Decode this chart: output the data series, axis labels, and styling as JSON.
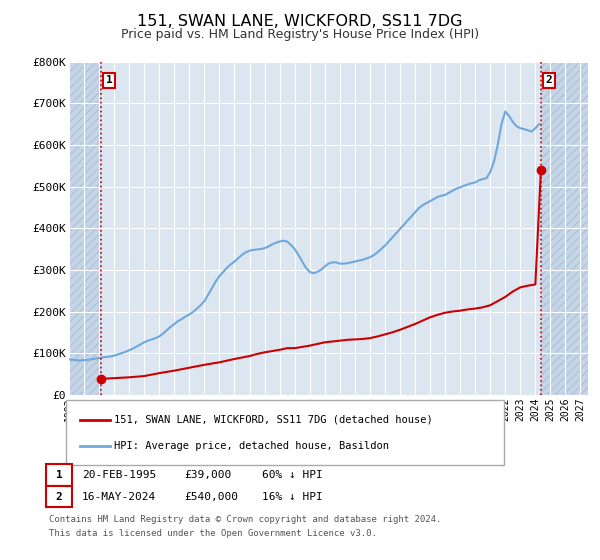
{
  "title": "151, SWAN LANE, WICKFORD, SS11 7DG",
  "subtitle": "Price paid vs. HM Land Registry's House Price Index (HPI)",
  "title_fontsize": 11.5,
  "subtitle_fontsize": 9,
  "background_color": "#ffffff",
  "plot_bg_color": "#dce6f1",
  "hatch_color": "#c5d5e8",
  "grid_color": "#ffffff",
  "ylim": [
    0,
    800000
  ],
  "yticks": [
    0,
    100000,
    200000,
    300000,
    400000,
    500000,
    600000,
    700000,
    800000
  ],
  "ytick_labels": [
    "£0",
    "£100K",
    "£200K",
    "£300K",
    "£400K",
    "£500K",
    "£600K",
    "£700K",
    "£800K"
  ],
  "xlim_start": 1993.0,
  "xlim_end": 2027.5,
  "xticks": [
    1993,
    1994,
    1995,
    1996,
    1997,
    1998,
    1999,
    2000,
    2001,
    2002,
    2003,
    2004,
    2005,
    2006,
    2007,
    2008,
    2009,
    2010,
    2011,
    2012,
    2013,
    2014,
    2015,
    2016,
    2017,
    2018,
    2019,
    2020,
    2021,
    2022,
    2023,
    2024,
    2025,
    2026,
    2027
  ],
  "hpi_color": "#6fa8dc",
  "price_color": "#cc0000",
  "vline_color": "#cc0000",
  "sale1_x": 1995.13,
  "sale1_y": 39000,
  "sale2_x": 2024.37,
  "sale2_y": 540000,
  "legend_label1": "151, SWAN LANE, WICKFORD, SS11 7DG (detached house)",
  "legend_label2": "HPI: Average price, detached house, Basildon",
  "annot1_label": "1",
  "annot2_label": "2",
  "table_row1": [
    "1",
    "20-FEB-1995",
    "£39,000",
    "60% ↓ HPI"
  ],
  "table_row2": [
    "2",
    "16-MAY-2024",
    "£540,000",
    "16% ↓ HPI"
  ],
  "footer_line1": "Contains HM Land Registry data © Crown copyright and database right 2024.",
  "footer_line2": "This data is licensed under the Open Government Licence v3.0.",
  "hpi_data_x": [
    1993.0,
    1993.25,
    1993.5,
    1993.75,
    1994.0,
    1994.25,
    1994.5,
    1994.75,
    1995.0,
    1995.25,
    1995.5,
    1995.75,
    1996.0,
    1996.25,
    1996.5,
    1996.75,
    1997.0,
    1997.25,
    1997.5,
    1997.75,
    1998.0,
    1998.25,
    1998.5,
    1998.75,
    1999.0,
    1999.25,
    1999.5,
    1999.75,
    2000.0,
    2000.25,
    2000.5,
    2000.75,
    2001.0,
    2001.25,
    2001.5,
    2001.75,
    2002.0,
    2002.25,
    2002.5,
    2002.75,
    2003.0,
    2003.25,
    2003.5,
    2003.75,
    2004.0,
    2004.25,
    2004.5,
    2004.75,
    2005.0,
    2005.25,
    2005.5,
    2005.75,
    2006.0,
    2006.25,
    2006.5,
    2006.75,
    2007.0,
    2007.25,
    2007.5,
    2007.75,
    2008.0,
    2008.25,
    2008.5,
    2008.75,
    2009.0,
    2009.25,
    2009.5,
    2009.75,
    2010.0,
    2010.25,
    2010.5,
    2010.75,
    2011.0,
    2011.25,
    2011.5,
    2011.75,
    2012.0,
    2012.25,
    2012.5,
    2012.75,
    2013.0,
    2013.25,
    2013.5,
    2013.75,
    2014.0,
    2014.25,
    2014.5,
    2014.75,
    2015.0,
    2015.25,
    2015.5,
    2015.75,
    2016.0,
    2016.25,
    2016.5,
    2016.75,
    2017.0,
    2017.25,
    2017.5,
    2017.75,
    2018.0,
    2018.25,
    2018.5,
    2018.75,
    2019.0,
    2019.25,
    2019.5,
    2019.75,
    2020.0,
    2020.25,
    2020.5,
    2020.75,
    2021.0,
    2021.25,
    2021.5,
    2021.75,
    2022.0,
    2022.25,
    2022.5,
    2022.75,
    2023.0,
    2023.25,
    2023.5,
    2023.75,
    2024.0,
    2024.25
  ],
  "hpi_data_y": [
    85000,
    84000,
    83000,
    82500,
    83000,
    84000,
    85000,
    87000,
    88000,
    90000,
    91000,
    92000,
    94000,
    97000,
    100000,
    103000,
    107000,
    111000,
    116000,
    121000,
    126000,
    130000,
    133000,
    136000,
    140000,
    147000,
    155000,
    163000,
    170000,
    177000,
    182000,
    188000,
    193000,
    199000,
    207000,
    215000,
    225000,
    240000,
    256000,
    272000,
    285000,
    295000,
    305000,
    313000,
    320000,
    328000,
    336000,
    342000,
    346000,
    348000,
    349000,
    350000,
    352000,
    356000,
    361000,
    365000,
    368000,
    370000,
    368000,
    360000,
    350000,
    336000,
    320000,
    305000,
    295000,
    292000,
    295000,
    300000,
    308000,
    315000,
    318000,
    318000,
    315000,
    315000,
    316000,
    318000,
    320000,
    322000,
    324000,
    327000,
    330000,
    335000,
    342000,
    350000,
    358000,
    368000,
    378000,
    388000,
    398000,
    408000,
    418000,
    428000,
    438000,
    448000,
    455000,
    460000,
    465000,
    470000,
    475000,
    478000,
    480000,
    485000,
    490000,
    495000,
    498000,
    502000,
    505000,
    508000,
    510000,
    515000,
    518000,
    520000,
    535000,
    560000,
    600000,
    650000,
    680000,
    670000,
    655000,
    645000,
    640000,
    638000,
    635000,
    632000,
    640000,
    650000
  ],
  "price_line_x": [
    1995.13,
    1995.5,
    1996.0,
    1997.0,
    1998.0,
    1999.0,
    2000.0,
    2001.0,
    2002.0,
    2003.0,
    2004.0,
    2005.0,
    2005.5,
    2006.0,
    2007.0,
    2007.5,
    2008.0,
    2008.5,
    2009.0,
    2009.5,
    2010.0,
    2010.5,
    2011.0,
    2011.5,
    2012.0,
    2012.5,
    2013.0,
    2013.5,
    2014.0,
    2014.5,
    2015.0,
    2015.5,
    2016.0,
    2016.5,
    2017.0,
    2017.5,
    2018.0,
    2018.5,
    2019.0,
    2019.5,
    2020.0,
    2020.5,
    2021.0,
    2021.5,
    2022.0,
    2022.5,
    2023.0,
    2023.5,
    2024.0,
    2024.37
  ],
  "price_line_y": [
    39000,
    39000,
    40000,
    42000,
    45000,
    52000,
    58000,
    65000,
    72000,
    78000,
    86000,
    93000,
    98000,
    102000,
    108000,
    112000,
    112000,
    115000,
    118000,
    122000,
    126000,
    128000,
    130000,
    132000,
    133000,
    134000,
    136000,
    140000,
    145000,
    150000,
    156000,
    163000,
    170000,
    178000,
    186000,
    192000,
    197000,
    200000,
    202000,
    205000,
    207000,
    210000,
    215000,
    225000,
    235000,
    248000,
    258000,
    262000,
    265000,
    540000
  ]
}
